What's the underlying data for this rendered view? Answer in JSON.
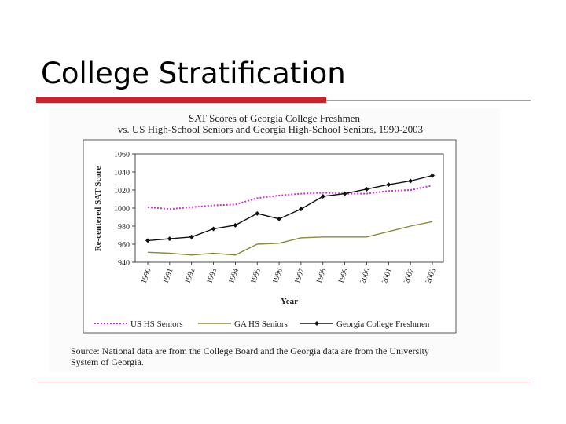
{
  "slide": {
    "title": "College Stratification"
  },
  "colors": {
    "accent": "#d0202a",
    "rule": "#c89090",
    "us_series": "#cc33cc",
    "ga_series": "#8a8a3a",
    "college_series": "#111111"
  },
  "chart_data": {
    "type": "line",
    "title": "SAT Scores of Georgia College Freshmen",
    "subtitle": "vs. US High-School Seniors and Georgia High-School Seniors, 1990-2003",
    "xlabel": "Year",
    "ylabel": "Re-centered SAT Score",
    "ylim": [
      940,
      1060
    ],
    "yticks": [
      940,
      960,
      980,
      1000,
      1020,
      1040,
      1060
    ],
    "categories": [
      "1990",
      "1991",
      "1992",
      "1993",
      "1994",
      "1995",
      "1996",
      "1997",
      "1998",
      "1999",
      "2000",
      "2001",
      "2002",
      "2003"
    ],
    "series": [
      {
        "name": "US HS Seniors",
        "style": "dotted",
        "values": [
          1001,
          999,
          1001,
          1003,
          1004,
          1011,
          1014,
          1016,
          1017,
          1016,
          1016,
          1019,
          1020,
          1025
        ]
      },
      {
        "name": "GA HS Seniors",
        "style": "solid",
        "values": [
          951,
          950,
          948,
          950,
          948,
          960,
          961,
          967,
          968,
          968,
          968,
          974,
          980,
          985
        ]
      },
      {
        "name": "Georgia College Freshmen",
        "style": "markers",
        "values": [
          964,
          966,
          968,
          977,
          981,
          994,
          988,
          999,
          1013,
          1016,
          1021,
          1026,
          1030,
          1036
        ]
      }
    ],
    "source": "Source: National data are from the College Board and the Georgia data are from the University System of Georgia."
  }
}
